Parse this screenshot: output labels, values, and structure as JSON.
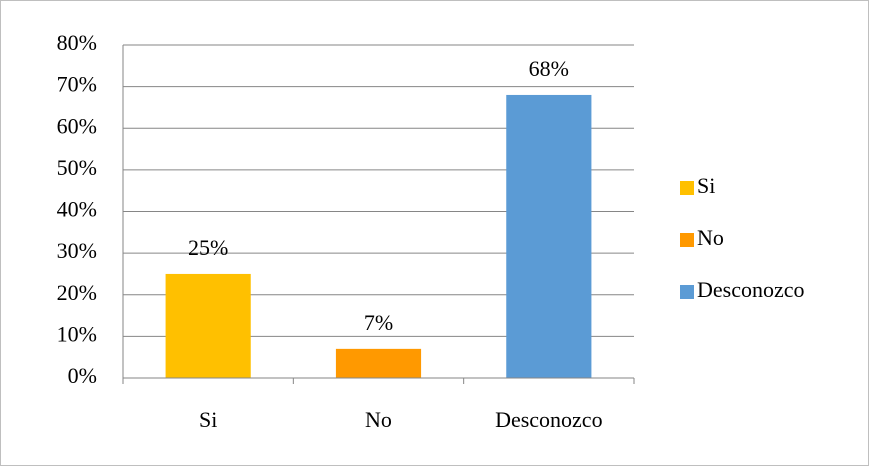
{
  "chart_data": {
    "type": "bar",
    "categories": [
      "Si",
      "No",
      "Desconozco"
    ],
    "values": [
      25,
      7,
      68
    ],
    "value_labels": [
      "25%",
      "7%",
      "68%"
    ],
    "colors": [
      "#ffc000",
      "#ff9900",
      "#5b9bd5"
    ],
    "ylim": [
      0,
      80
    ],
    "yticks": [
      {
        "value": 0,
        "label": "0%"
      },
      {
        "value": 10,
        "label": "10%"
      },
      {
        "value": 20,
        "label": "20%"
      },
      {
        "value": 30,
        "label": "30%"
      },
      {
        "value": 40,
        "label": "40%"
      },
      {
        "value": 50,
        "label": "50%"
      },
      {
        "value": 60,
        "label": "60%"
      },
      {
        "value": 70,
        "label": "70%"
      },
      {
        "value": 80,
        "label": "80%"
      }
    ],
    "grid": true,
    "legend": "right"
  }
}
